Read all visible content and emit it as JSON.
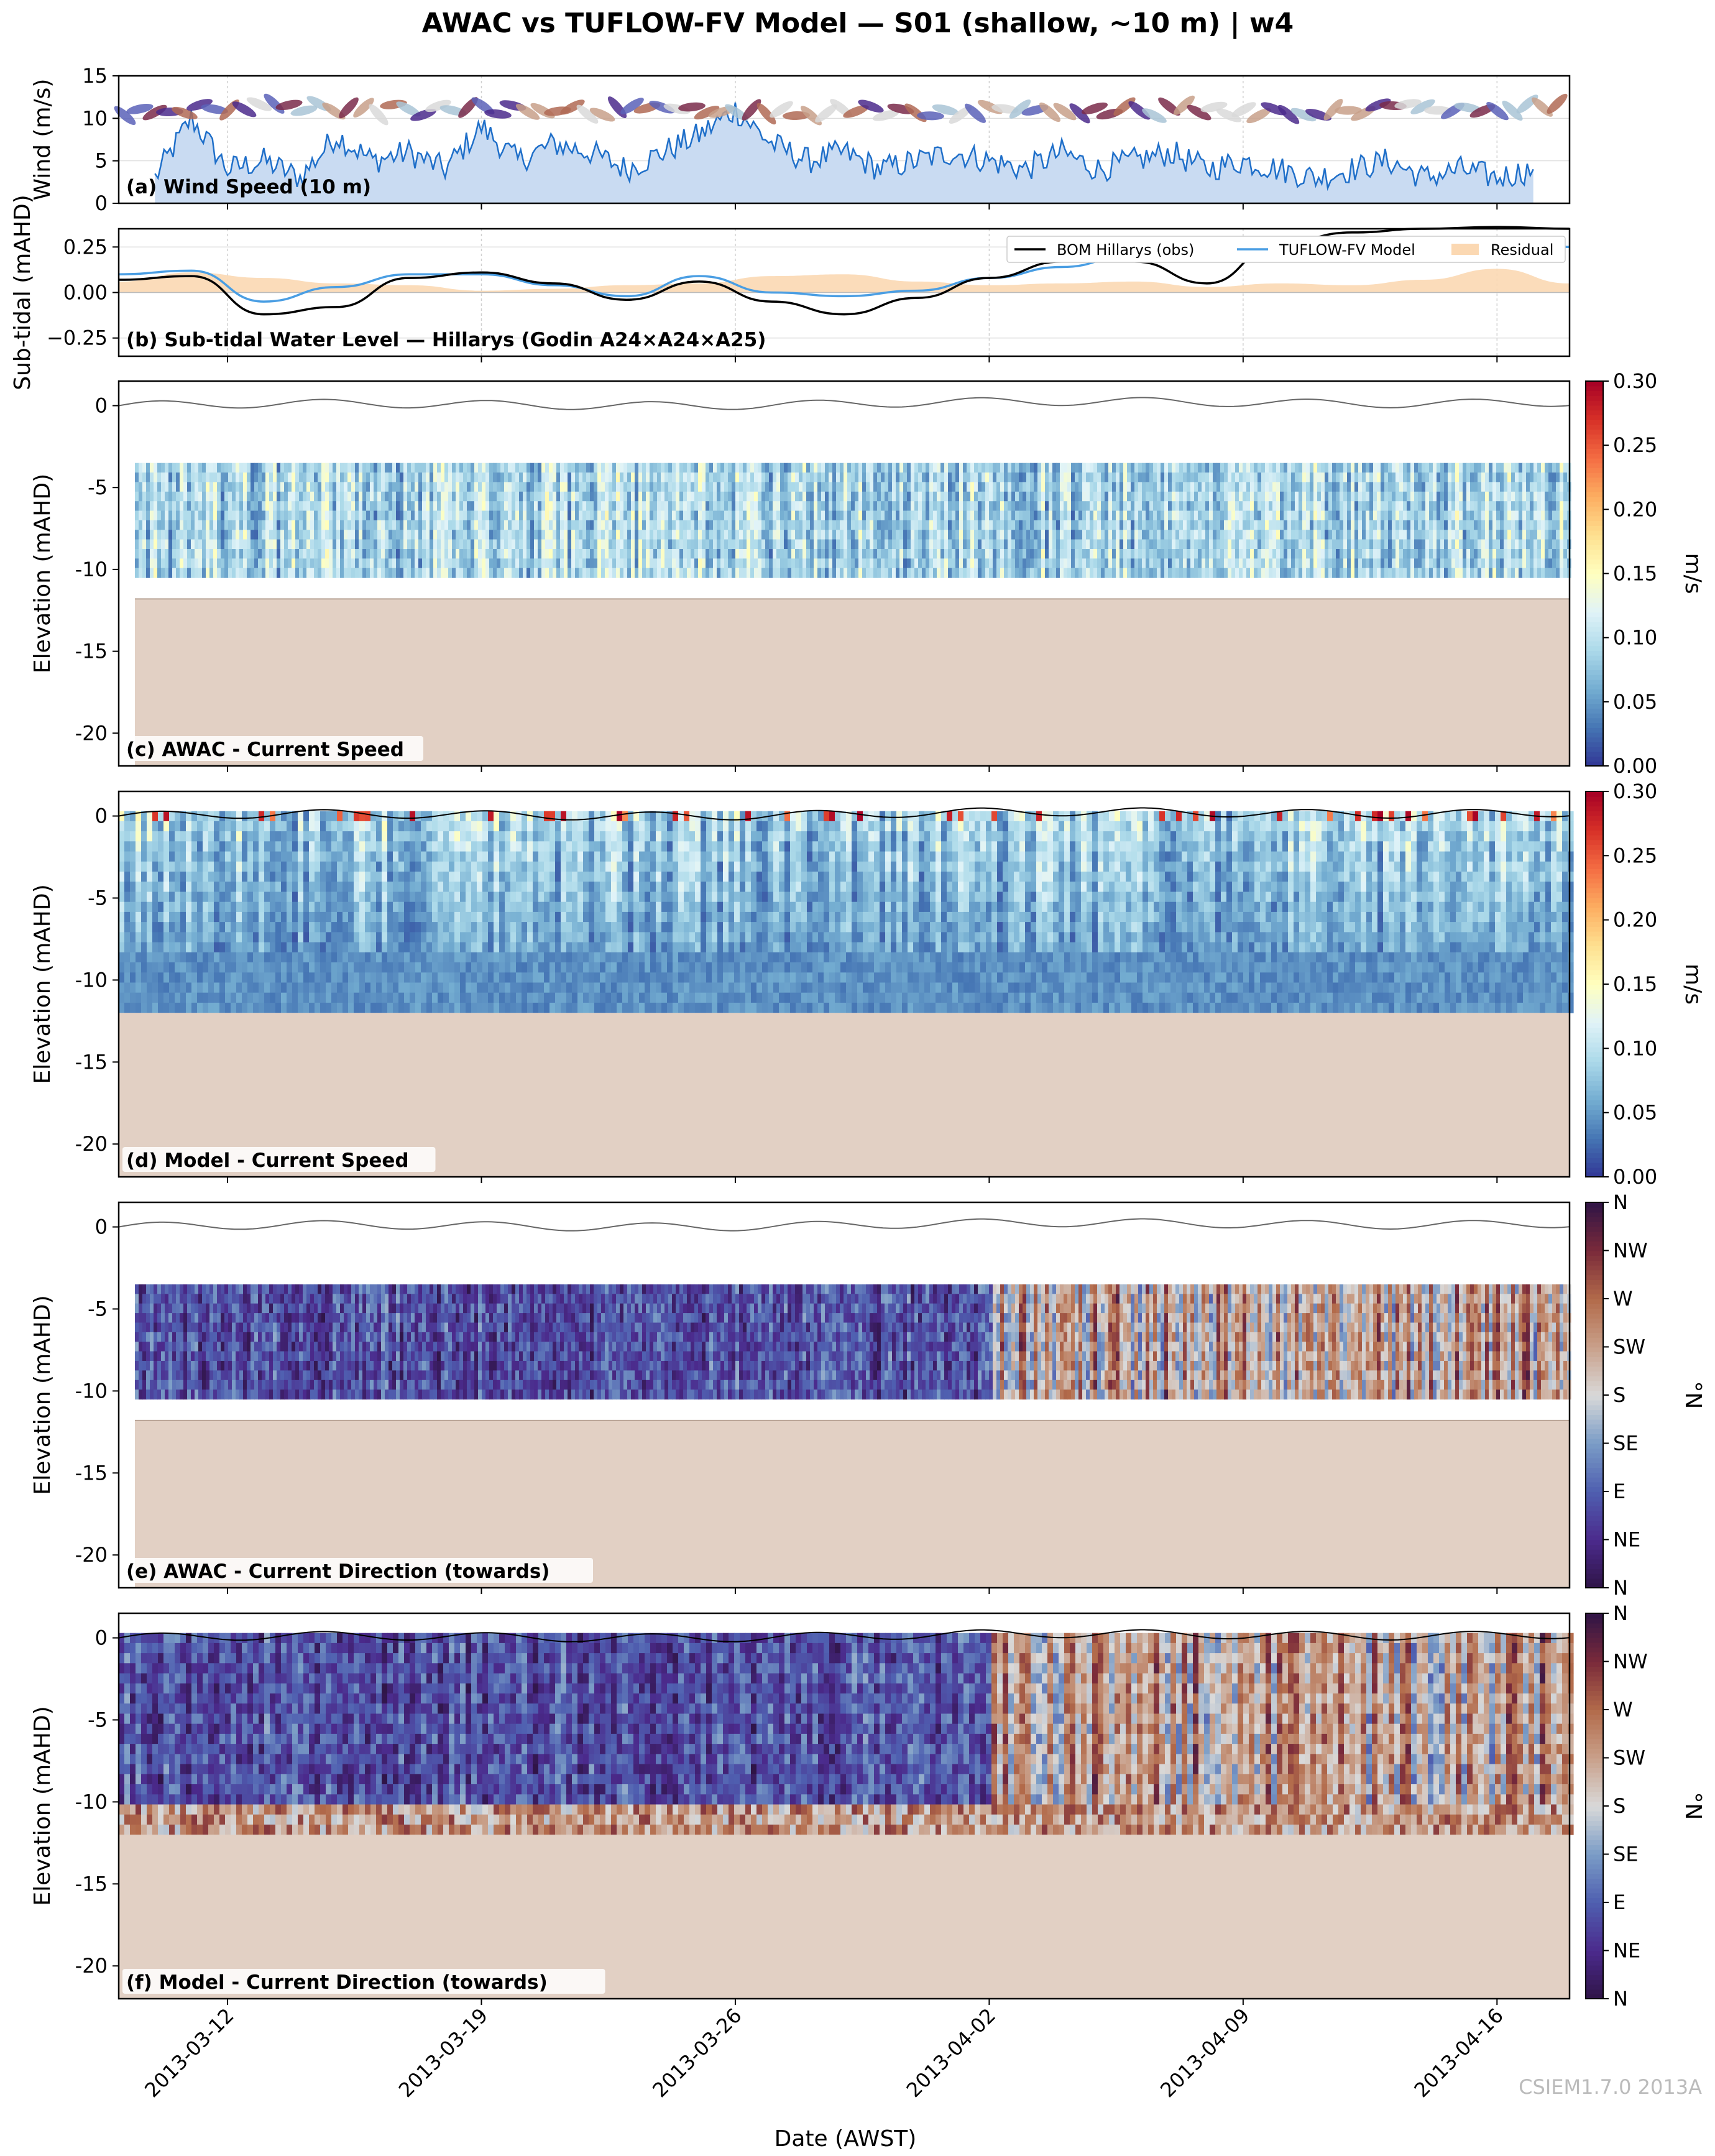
{
  "figure": {
    "title": "AWAC vs TUFLOW-FV Model — S01 (shallow, ~10 m) | w4",
    "xlabel": "Date (AWST)",
    "watermark": "CSIEM1.7.0 2013A"
  },
  "colors": {
    "wind_line": "#1f6fc9",
    "wind_fill": "#c9dbf2",
    "obs_line": "#000000",
    "model_line": "#4a9ee3",
    "residual_fill": "#fbd8b2",
    "seabed": "#e2d0c4",
    "speed_cmap": [
      "#313695",
      "#4575b4",
      "#74add1",
      "#abd9e9",
      "#e0f3f8",
      "#ffffbf",
      "#fee090",
      "#fdae61",
      "#f46d43",
      "#d73027",
      "#a50026"
    ],
    "direction_cmap": [
      "#2f1446",
      "#4b2a8c",
      "#4f5fb0",
      "#7a9cc6",
      "#d9d9d9",
      "#c9a08a",
      "#b26a4a",
      "#7a2a3a",
      "#2f1446"
    ]
  },
  "chart_data": [
    {
      "id": "a",
      "type": "area",
      "panel_label": "(a) Wind Speed (10 m)",
      "ylabel": "Wind (m/s)",
      "ylim": [
        0,
        15
      ],
      "yticks": [
        0,
        5,
        10,
        15
      ],
      "x_range": [
        "2013-03-09",
        "2013-04-18"
      ],
      "x": [
        "2013-03-10",
        "2013-03-11",
        "2013-03-12",
        "2013-03-13",
        "2013-03-14",
        "2013-03-15",
        "2013-03-16",
        "2013-03-17",
        "2013-03-18",
        "2013-03-19",
        "2013-03-20",
        "2013-03-21",
        "2013-03-22",
        "2013-03-23",
        "2013-03-24",
        "2013-03-25",
        "2013-03-26",
        "2013-03-27",
        "2013-03-28",
        "2013-03-29",
        "2013-03-30",
        "2013-03-31",
        "2013-04-01",
        "2013-04-02",
        "2013-04-03",
        "2013-04-04",
        "2013-04-05",
        "2013-04-06",
        "2013-04-07",
        "2013-04-08",
        "2013-04-09",
        "2013-04-10",
        "2013-04-11",
        "2013-04-12",
        "2013-04-13",
        "2013-04-14",
        "2013-04-15",
        "2013-04-16",
        "2013-04-17"
      ],
      "values": [
        3,
        10,
        4,
        5,
        3,
        8,
        5,
        6,
        4,
        9,
        5,
        7,
        6,
        4,
        6,
        8,
        11,
        7,
        5,
        6,
        4,
        5,
        6,
        5,
        4,
        6,
        4,
        5,
        6,
        4,
        5,
        4,
        3,
        4,
        5,
        3,
        4,
        3,
        4
      ],
      "wind_arrows": "direction-coloured feather glyphs drawn along y ≈ 11 m/s"
    },
    {
      "id": "b",
      "type": "line",
      "panel_label": "(b) Sub-tidal Water Level — Hillarys (Godin A24×A24×A25)",
      "ylabel": "Sub-tidal (mAHD)",
      "ylim": [
        -0.35,
        0.35
      ],
      "yticks": [
        -0.25,
        0.0,
        0.25
      ],
      "ytick_labels": [
        "−0.25",
        "0.00",
        "0.25"
      ],
      "legend": [
        "BOM Hillarys (obs)",
        "TUFLOW-FV Model",
        "Residual"
      ],
      "legend_position": "top-right",
      "x": [
        "2013-03-09",
        "2013-03-11",
        "2013-03-13",
        "2013-03-15",
        "2013-03-17",
        "2013-03-19",
        "2013-03-21",
        "2013-03-23",
        "2013-03-25",
        "2013-03-27",
        "2013-03-29",
        "2013-03-31",
        "2013-04-02",
        "2013-04-04",
        "2013-04-06",
        "2013-04-08",
        "2013-04-10",
        "2013-04-12",
        "2013-04-14",
        "2013-04-16",
        "2013-04-18"
      ],
      "series": [
        {
          "name": "BOM Hillarys (obs)",
          "values": [
            0.07,
            0.09,
            -0.12,
            -0.08,
            0.08,
            0.11,
            0.05,
            -0.04,
            0.06,
            -0.05,
            -0.12,
            -0.03,
            0.08,
            0.17,
            0.17,
            0.05,
            0.27,
            0.33,
            0.35,
            0.36,
            0.35
          ]
        },
        {
          "name": "TUFLOW-FV Model",
          "values": [
            0.1,
            0.12,
            -0.05,
            0.03,
            0.1,
            0.1,
            0.04,
            -0.02,
            0.09,
            0.0,
            -0.02,
            0.01,
            0.08,
            0.14,
            0.21,
            0.25,
            0.28,
            0.29,
            0.3,
            0.3,
            0.25
          ]
        },
        {
          "name": "Residual",
          "values": [
            0.06,
            0.11,
            0.08,
            0.05,
            0.04,
            0.01,
            0.02,
            0.04,
            0.05,
            0.09,
            0.1,
            0.06,
            0.04,
            0.05,
            0.06,
            0.03,
            0.05,
            0.04,
            0.07,
            0.13,
            0.05
          ]
        }
      ]
    },
    {
      "id": "c",
      "type": "heatmap",
      "panel_label": "(c) AWAC - Current Speed",
      "ylabel": "Elevation (mAHD)",
      "ylim": [
        -22,
        1.5
      ],
      "yticks": [
        0,
        -5,
        -10,
        -15,
        -20
      ],
      "data_z_range": [
        -10.5,
        -3.5
      ],
      "seabed_top": -11.8,
      "colorbar": {
        "label": "m/s",
        "range": [
          0.0,
          0.3
        ],
        "ticks": [
          "0.00",
          "0.05",
          "0.10",
          "0.15",
          "0.20",
          "0.25",
          "0.30"
        ]
      }
    },
    {
      "id": "d",
      "type": "heatmap",
      "panel_label": "(d) Model - Current Speed",
      "ylabel": "Elevation (mAHD)",
      "ylim": [
        -22,
        1.5
      ],
      "yticks": [
        0,
        -5,
        -10,
        -15,
        -20
      ],
      "data_z_range": [
        -12,
        0.3
      ],
      "seabed_top": -12,
      "colorbar": {
        "label": "m/s",
        "range": [
          0.0,
          0.3
        ],
        "ticks": [
          "0.00",
          "0.05",
          "0.10",
          "0.15",
          "0.20",
          "0.25",
          "0.30"
        ]
      }
    },
    {
      "id": "e",
      "type": "heatmap",
      "panel_label": "(e) AWAC - Current Direction (towards)",
      "ylabel": "Elevation (mAHD)",
      "ylim": [
        -22,
        1.5
      ],
      "yticks": [
        0,
        -5,
        -10,
        -15,
        -20
      ],
      "data_z_range": [
        -10.5,
        -3.5
      ],
      "seabed_top": -11.8,
      "colorbar": {
        "label": "°N",
        "range": [
          0,
          360
        ],
        "ticks": [
          "N",
          "NE",
          "E",
          "SE",
          "S",
          "SW",
          "W",
          "NW",
          "N"
        ]
      }
    },
    {
      "id": "f",
      "type": "heatmap",
      "panel_label": "(f) Model - Current Direction (towards)",
      "ylabel": "Elevation (mAHD)",
      "ylim": [
        -22,
        1.5
      ],
      "yticks": [
        0,
        -5,
        -10,
        -15,
        -20
      ],
      "data_z_range": [
        -12,
        0.3
      ],
      "seabed_top": -12,
      "colorbar": {
        "label": "°N",
        "range": [
          0,
          360
        ],
        "ticks": [
          "N",
          "NE",
          "E",
          "SE",
          "S",
          "SW",
          "W",
          "NW",
          "N"
        ]
      }
    }
  ],
  "x_axis": {
    "range": [
      "2013-03-09",
      "2013-04-18"
    ],
    "ticks": [
      "2013-03-12",
      "2013-03-19",
      "2013-03-26",
      "2013-04-02",
      "2013-04-09",
      "2013-04-16"
    ]
  }
}
